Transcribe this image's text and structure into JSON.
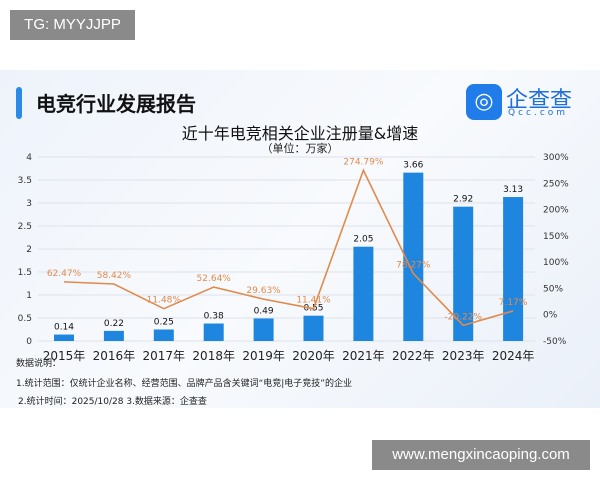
{
  "overlay": {
    "badge": "TG: MYYJJPP",
    "watermark": "www.mengxincaoping.com"
  },
  "header": {
    "report_title": "电竞行业发展报告",
    "logo_name": "企查查",
    "logo_url": "Qcc.com"
  },
  "notes": {
    "heading": "数据说明：",
    "line1": "1.统计范围：仅统计企业名称、经营范围、品牌产品含关键词“电竞|电子竞技”的企业",
    "line2": "2.统计时间：2025/10/28 3.数据来源：企查查"
  },
  "chart_data": {
    "type": "bar+line",
    "title": "近十年电竞相关企业注册量&增速",
    "subtitle": "（单位：万家）",
    "categories": [
      "2015年",
      "2016年",
      "2017年",
      "2018年",
      "2019年",
      "2020年",
      "2021年",
      "2022年",
      "2023年",
      "2024年"
    ],
    "series": [
      {
        "type": "bar",
        "axis": "left",
        "values": [
          0.14,
          0.22,
          0.25,
          0.38,
          0.49,
          0.55,
          2.05,
          3.66,
          2.92,
          3.13
        ],
        "labels": [
          "0.14",
          "0.22",
          "0.25",
          "0.38",
          "0.49",
          "0.55",
          "2.05",
          "3.66",
          "2.92",
          "3.13"
        ],
        "color": "#1f86e0"
      },
      {
        "type": "line",
        "axis": "right",
        "values": [
          62.47,
          58.42,
          11.48,
          52.64,
          29.63,
          11.41,
          274.79,
          78.27,
          -20.22,
          7.17
        ],
        "labels": [
          "62.47%",
          "58.42%",
          "11.48%",
          "52.64%",
          "29.63%",
          "11.41%",
          "274.79%",
          "78.27%",
          "-20.22%",
          "7.17%"
        ],
        "color": "#e08a4c"
      }
    ],
    "left_axis": {
      "range": [
        0,
        4
      ],
      "ticks": [
        "0",
        "0.5",
        "1",
        "1.5",
        "2",
        "2.5",
        "3",
        "3.5",
        "4"
      ]
    },
    "right_axis": {
      "range": [
        -50,
        300
      ],
      "ticks": [
        "-50%",
        "0%",
        "50%",
        "100%",
        "150%",
        "200%",
        "250%",
        "300%"
      ]
    },
    "grid": true
  }
}
